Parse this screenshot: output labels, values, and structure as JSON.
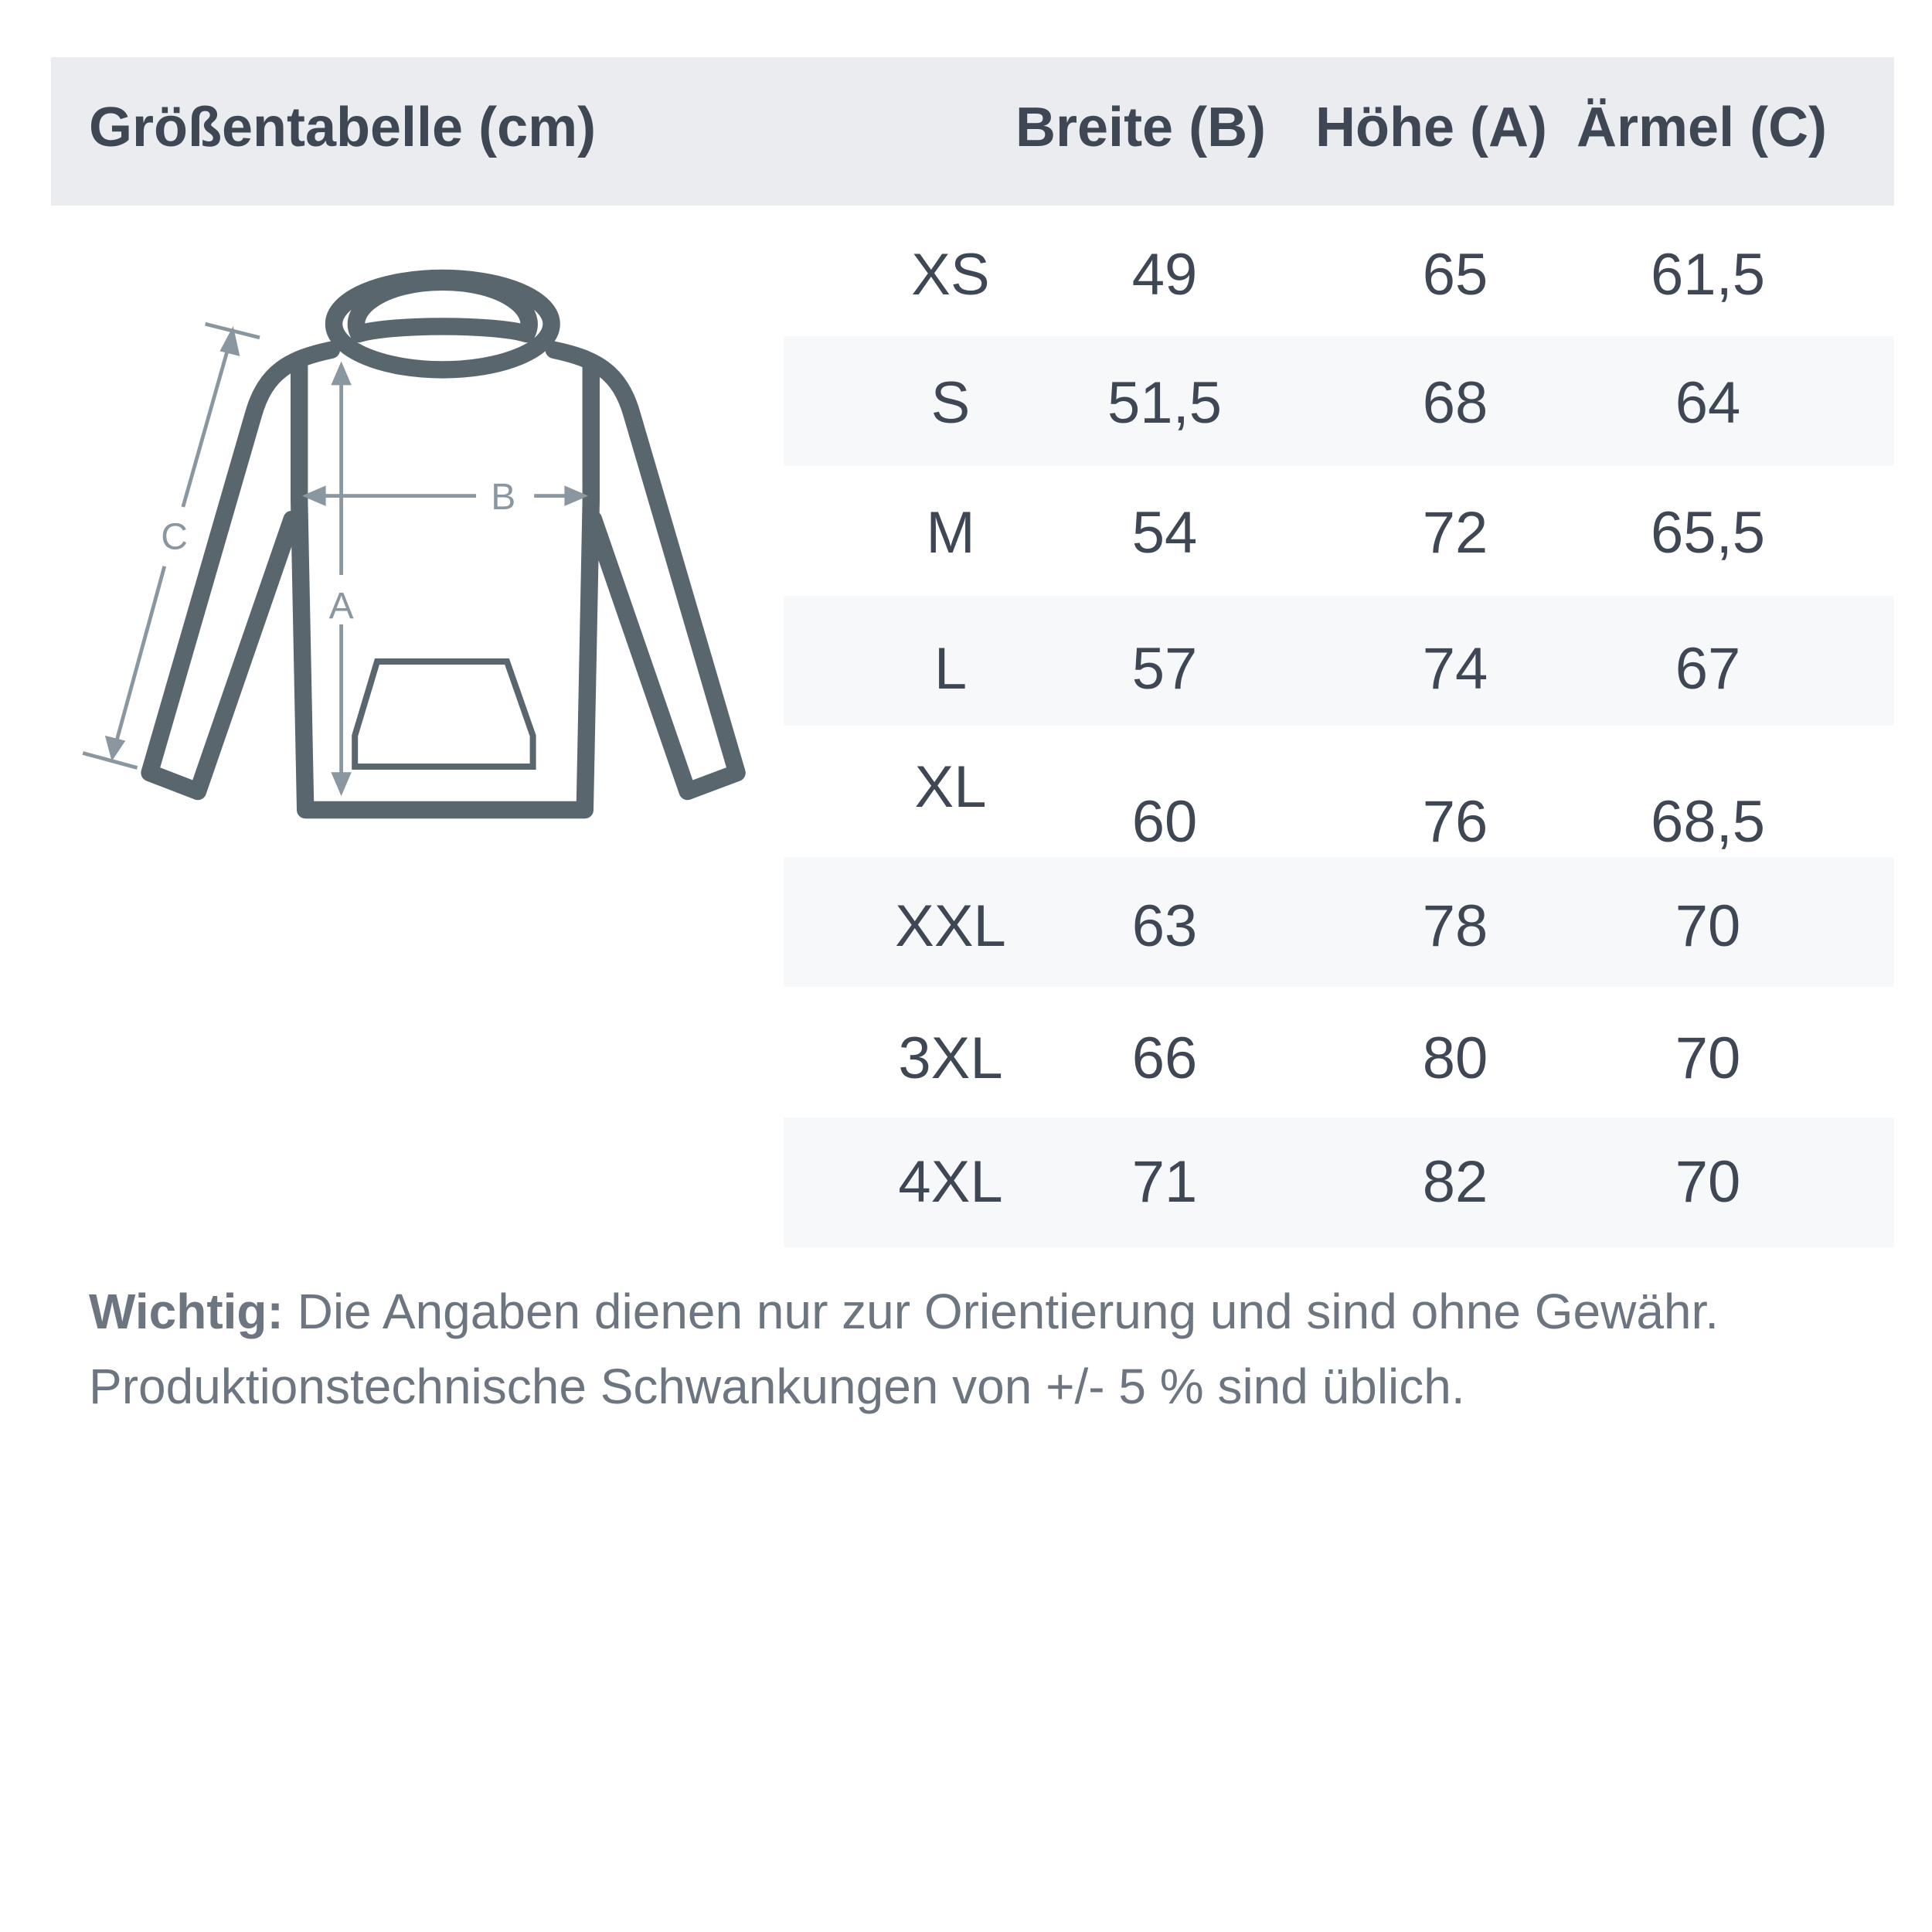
{
  "header": {
    "title": "Größentabelle (cm)",
    "columns": [
      "Breite (B)",
      "Höhe (A)",
      "Ärmel (C)"
    ]
  },
  "diagram": {
    "labels": {
      "width": "B",
      "height": "A",
      "sleeve": "C"
    },
    "outline_color": "#5a666e",
    "measure_color": "#8a96a0"
  },
  "table": {
    "rows": [
      {
        "size": "XS",
        "breite": "49",
        "hoehe": "65",
        "aermel": "61,5"
      },
      {
        "size": "S",
        "breite": "51,5",
        "hoehe": "68",
        "aermel": "64"
      },
      {
        "size": "M",
        "breite": "54",
        "hoehe": "72",
        "aermel": "65,5"
      },
      {
        "size": "L",
        "breite": "57",
        "hoehe": "74",
        "aermel": "67"
      },
      {
        "size": "XL",
        "breite": "60",
        "hoehe": "76",
        "aermel": "68,5"
      },
      {
        "size": "XXL",
        "breite": "63",
        "hoehe": "78",
        "aermel": "70"
      },
      {
        "size": "3XL",
        "breite": "66",
        "hoehe": "80",
        "aermel": "70"
      },
      {
        "size": "4XL",
        "breite": "71",
        "hoehe": "82",
        "aermel": "70"
      }
    ]
  },
  "note": {
    "label": "Wichtig:",
    "line1": " Die Angaben dienen nur zur Orientierung und sind ohne Gewähr.",
    "line2": "Produktionstechnische Schwankungen von +/- 5 % sind üblich."
  }
}
